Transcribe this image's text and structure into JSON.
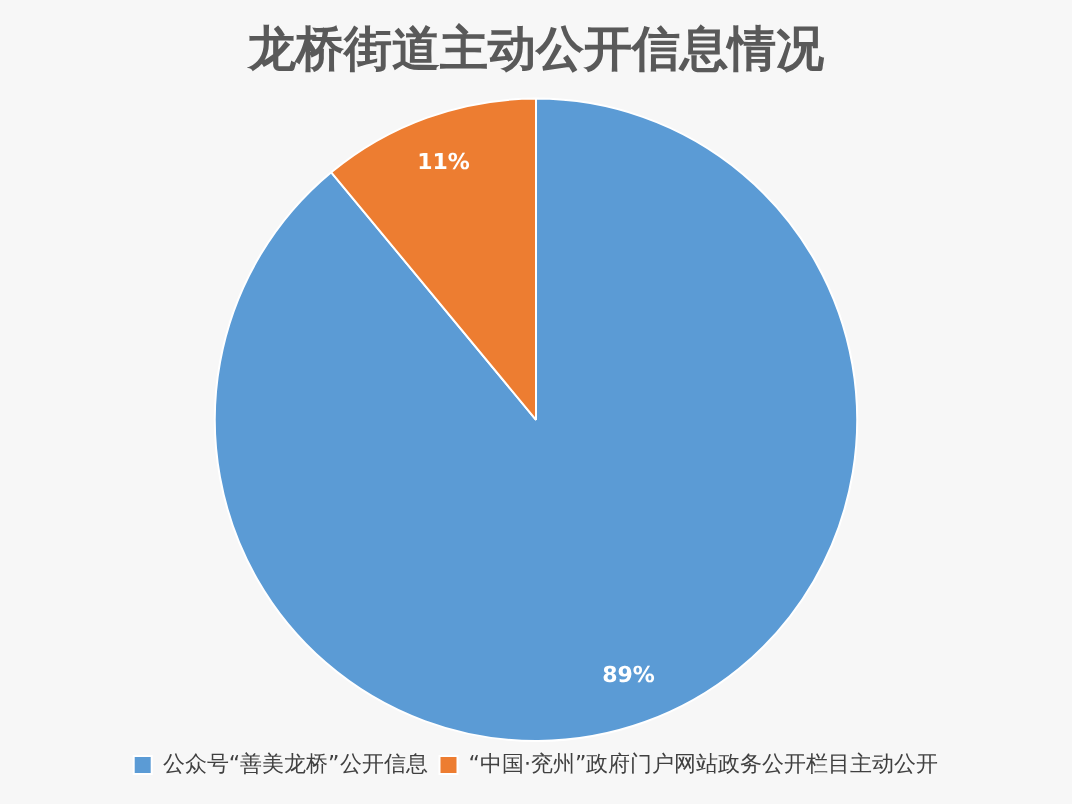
{
  "chart_data": {
    "type": "pie",
    "title": "龙桥街道主动公开信息情况",
    "categories": [
      "公众号“善美龙桥”公开信息",
      "“中国·兖州”政府门户网站政务公开栏目主动公开"
    ],
    "values": [
      89,
      11
    ],
    "colors": [
      "#5b9bd5",
      "#ed7d31"
    ],
    "value_labels": [
      "89%",
      "11%"
    ],
    "legend": "bottom"
  }
}
